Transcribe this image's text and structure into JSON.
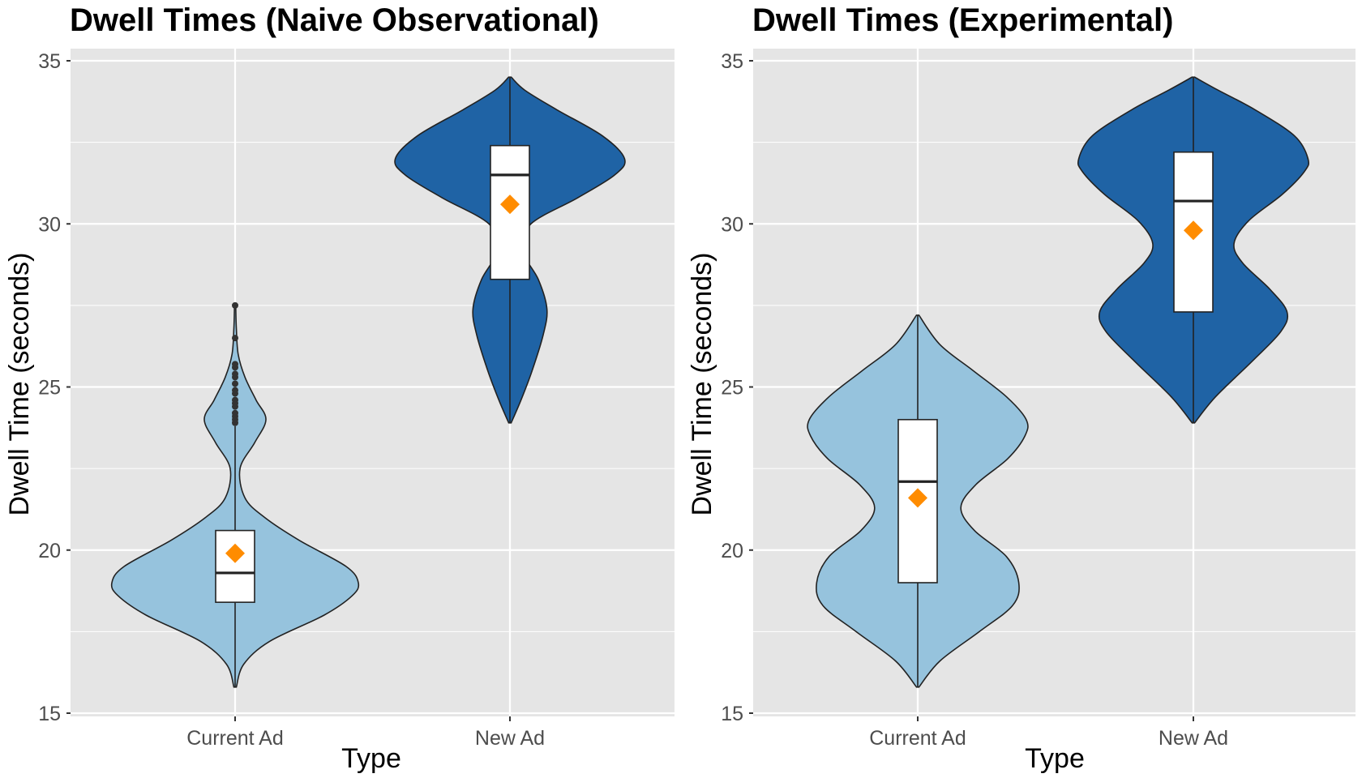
{
  "colors": {
    "panel_bg": "#e5e5e5",
    "grid": "#ffffff",
    "current_ad_fill": "#96c3dd",
    "new_ad_fill": "#1f63a5",
    "outline": "#222222",
    "box_fill": "#ffffff",
    "mean_marker": "#ff8c00",
    "tick_label": "#4d4d4d"
  },
  "chart_data": [
    {
      "type": "violin",
      "title": "Dwell Times (Naive Observational)",
      "xlabel": "Type",
      "ylabel": "Dwell Time (seconds)",
      "categories": [
        "Current Ad",
        "New Ad"
      ],
      "ylim": [
        15,
        35
      ],
      "yticks": [
        15,
        20,
        25,
        30,
        35
      ],
      "ytick_labels": [
        "15",
        "20",
        "25",
        "30",
        "35"
      ],
      "grid": true,
      "groups": [
        {
          "category": "Current Ad",
          "fill": "#96c3dd",
          "range": [
            15.8,
            27.5
          ],
          "box": {
            "q1": 18.4,
            "median": 19.3,
            "q3": 20.6,
            "whisker_low": 15.8,
            "whisker_high": 23.8
          },
          "mean": 19.9,
          "outliers": [
            23.9,
            24.0,
            24.1,
            24.2,
            24.4,
            24.5,
            24.6,
            24.8,
            24.9,
            25.1,
            25.3,
            25.4,
            25.6,
            25.7,
            26.5,
            27.5
          ],
          "density": [
            [
              15.8,
              0.01
            ],
            [
              16.5,
              0.07
            ],
            [
              17.2,
              0.28
            ],
            [
              18.0,
              0.72
            ],
            [
              18.6,
              0.95
            ],
            [
              19.0,
              1.0
            ],
            [
              19.5,
              0.9
            ],
            [
              20.3,
              0.52
            ],
            [
              21.0,
              0.24
            ],
            [
              21.6,
              0.08
            ],
            [
              22.5,
              0.04
            ],
            [
              23.3,
              0.16
            ],
            [
              24.0,
              0.25
            ],
            [
              24.6,
              0.17
            ],
            [
              25.3,
              0.08
            ],
            [
              26.0,
              0.025
            ],
            [
              26.8,
              0.01
            ],
            [
              27.5,
              0.005
            ]
          ]
        },
        {
          "category": "New Ad",
          "fill": "#1f63a5",
          "range": [
            23.9,
            34.5
          ],
          "box": {
            "q1": 28.3,
            "median": 31.5,
            "q3": 32.4,
            "whisker_low": 23.9,
            "whisker_high": 34.5
          },
          "mean": 30.6,
          "outliers": [],
          "density": [
            [
              23.9,
              0.01
            ],
            [
              24.6,
              0.09
            ],
            [
              25.5,
              0.18
            ],
            [
              26.6,
              0.27
            ],
            [
              27.4,
              0.3
            ],
            [
              28.3,
              0.23
            ],
            [
              29.2,
              0.1
            ],
            [
              30.0,
              0.17
            ],
            [
              30.8,
              0.55
            ],
            [
              31.5,
              0.85
            ],
            [
              32.0,
              0.93
            ],
            [
              32.7,
              0.75
            ],
            [
              33.5,
              0.38
            ],
            [
              34.1,
              0.12
            ],
            [
              34.5,
              0.01
            ]
          ]
        }
      ]
    },
    {
      "type": "violin",
      "title": "Dwell Times (Experimental)",
      "xlabel": "Type",
      "ylabel": "Dwell Time (seconds)",
      "categories": [
        "Current Ad",
        "New Ad"
      ],
      "ylim": [
        15,
        35
      ],
      "yticks": [
        15,
        20,
        25,
        30,
        35
      ],
      "ytick_labels": [
        "15",
        "20",
        "25",
        "30",
        "35"
      ],
      "grid": true,
      "groups": [
        {
          "category": "Current Ad",
          "fill": "#96c3dd",
          "range": [
            15.8,
            27.2
          ],
          "box": {
            "q1": 19.0,
            "median": 22.1,
            "q3": 24.0,
            "whisker_low": 15.8,
            "whisker_high": 27.2
          },
          "mean": 21.6,
          "outliers": [],
          "density": [
            [
              15.8,
              0.01
            ],
            [
              16.6,
              0.18
            ],
            [
              17.5,
              0.5
            ],
            [
              18.3,
              0.77
            ],
            [
              19.0,
              0.82
            ],
            [
              19.8,
              0.72
            ],
            [
              20.6,
              0.46
            ],
            [
              21.3,
              0.35
            ],
            [
              22.0,
              0.47
            ],
            [
              22.8,
              0.73
            ],
            [
              23.5,
              0.87
            ],
            [
              24.0,
              0.88
            ],
            [
              24.7,
              0.72
            ],
            [
              25.5,
              0.45
            ],
            [
              26.3,
              0.18
            ],
            [
              27.2,
              0.01
            ]
          ]
        },
        {
          "category": "New Ad",
          "fill": "#1f63a5",
          "range": [
            23.9,
            34.5
          ],
          "box": {
            "q1": 27.3,
            "median": 30.7,
            "q3": 32.2,
            "whisker_low": 23.9,
            "whisker_high": 34.5
          },
          "mean": 29.8,
          "outliers": [],
          "density": [
            [
              23.9,
              0.01
            ],
            [
              24.7,
              0.18
            ],
            [
              25.8,
              0.48
            ],
            [
              26.7,
              0.71
            ],
            [
              27.3,
              0.76
            ],
            [
              28.0,
              0.62
            ],
            [
              28.8,
              0.4
            ],
            [
              29.4,
              0.33
            ],
            [
              30.1,
              0.45
            ],
            [
              30.9,
              0.72
            ],
            [
              31.6,
              0.9
            ],
            [
              32.0,
              0.93
            ],
            [
              32.7,
              0.82
            ],
            [
              33.5,
              0.5
            ],
            [
              34.1,
              0.2
            ],
            [
              34.5,
              0.01
            ]
          ]
        }
      ]
    }
  ]
}
